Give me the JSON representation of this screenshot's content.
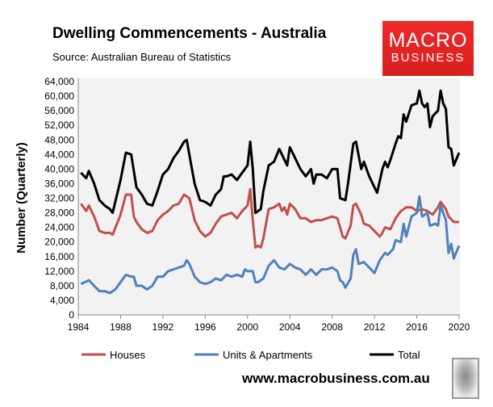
{
  "header": {
    "title": "Dwelling Commencements - Australia",
    "source": "Source: Australian Bureau of Statistics"
  },
  "logo": {
    "line1": "MACRO",
    "line2": "BUSINESS"
  },
  "footer": {
    "url": "www.macrobusiness.com.au"
  },
  "chart_data": {
    "type": "line",
    "title": "Dwelling Commencements - Australia",
    "xlabel": "",
    "ylabel": "Number (Quarterly)",
    "xlim": [
      1984,
      2020
    ],
    "ylim": [
      0,
      64000
    ],
    "xticks": [
      "1984",
      "1988",
      "1992",
      "1996",
      "2000",
      "2004",
      "2008",
      "2012",
      "2016",
      "2020"
    ],
    "yticks": [
      "0",
      "4,000",
      "8,000",
      "12,000",
      "16,000",
      "20,000",
      "24,000",
      "28,000",
      "32,000",
      "36,000",
      "40,000",
      "44,000",
      "48,000",
      "52,000",
      "56,000",
      "60,000",
      "64,000"
    ],
    "legend_position": "bottom",
    "grid": false,
    "series": [
      {
        "name": "Houses",
        "color": "#c0504d",
        "points": [
          [
            1984.25,
            30500
          ],
          [
            1984.75,
            28500
          ],
          [
            1985,
            30000
          ],
          [
            1985.5,
            27000
          ],
          [
            1986,
            23000
          ],
          [
            1986.5,
            22500
          ],
          [
            1987,
            22500
          ],
          [
            1987.25,
            22000
          ],
          [
            1988,
            27500
          ],
          [
            1988.5,
            33000
          ],
          [
            1989,
            33000
          ],
          [
            1989.25,
            27000
          ],
          [
            1989.5,
            25500
          ],
          [
            1990,
            23500
          ],
          [
            1990.5,
            22500
          ],
          [
            1991,
            23000
          ],
          [
            1991.5,
            26000
          ],
          [
            1992,
            27500
          ],
          [
            1992.5,
            28500
          ],
          [
            1993,
            30000
          ],
          [
            1993.5,
            30500
          ],
          [
            1994,
            33000
          ],
          [
            1994.5,
            32000
          ],
          [
            1995,
            26000
          ],
          [
            1995.5,
            23000
          ],
          [
            1996,
            21500
          ],
          [
            1996.5,
            22500
          ],
          [
            1997,
            25000
          ],
          [
            1997.5,
            27000
          ],
          [
            1998,
            27500
          ],
          [
            1998.5,
            28000
          ],
          [
            1999,
            26500
          ],
          [
            1999.5,
            28500
          ],
          [
            2000,
            30000
          ],
          [
            2000.25,
            34500
          ],
          [
            2000.5,
            26000
          ],
          [
            2000.75,
            18500
          ],
          [
            2001,
            19000
          ],
          [
            2001.25,
            18500
          ],
          [
            2001.5,
            21000
          ],
          [
            2002,
            29000
          ],
          [
            2002.5,
            29500
          ],
          [
            2003,
            30500
          ],
          [
            2003.25,
            28500
          ],
          [
            2003.5,
            29500
          ],
          [
            2003.75,
            27500
          ],
          [
            2004,
            30500
          ],
          [
            2004.5,
            29000
          ],
          [
            2005,
            26500
          ],
          [
            2005.5,
            26500
          ],
          [
            2006,
            25500
          ],
          [
            2006.5,
            26000
          ],
          [
            2007,
            26000
          ],
          [
            2007.5,
            26500
          ],
          [
            2008,
            27000
          ],
          [
            2008.5,
            26500
          ],
          [
            2009,
            21500
          ],
          [
            2009.25,
            21000
          ],
          [
            2009.75,
            24500
          ],
          [
            2010,
            30000
          ],
          [
            2010.25,
            30500
          ],
          [
            2010.75,
            27500
          ],
          [
            2011,
            25000
          ],
          [
            2011.5,
            24500
          ],
          [
            2012,
            23000
          ],
          [
            2012.5,
            21500
          ],
          [
            2012.75,
            22500
          ],
          [
            2013,
            24000
          ],
          [
            2013.5,
            23500
          ],
          [
            2014,
            26500
          ],
          [
            2014.5,
            28500
          ],
          [
            2015,
            29500
          ],
          [
            2015.5,
            29500
          ],
          [
            2016,
            28500
          ],
          [
            2016.5,
            29000
          ],
          [
            2017,
            28500
          ],
          [
            2017.5,
            27500
          ],
          [
            2018,
            29500
          ],
          [
            2018.25,
            31000
          ],
          [
            2018.75,
            29000
          ],
          [
            2019,
            27000
          ],
          [
            2019.5,
            25500
          ],
          [
            2020,
            25500
          ]
        ]
      },
      {
        "name": "Units & Apartments",
        "color": "#4f81bd",
        "points": [
          [
            1984.25,
            8500
          ],
          [
            1985,
            9500
          ],
          [
            1985.5,
            8000
          ],
          [
            1986,
            6500
          ],
          [
            1986.5,
            6500
          ],
          [
            1987,
            6000
          ],
          [
            1987.5,
            7000
          ],
          [
            1988,
            9000
          ],
          [
            1988.5,
            11000
          ],
          [
            1989,
            10500
          ],
          [
            1989.25,
            10500
          ],
          [
            1989.5,
            8000
          ],
          [
            1990,
            8000
          ],
          [
            1990.5,
            7000
          ],
          [
            1991,
            8000
          ],
          [
            1991.5,
            10500
          ],
          [
            1992,
            10500
          ],
          [
            1992.5,
            12000
          ],
          [
            1993,
            12500
          ],
          [
            1993.5,
            13000
          ],
          [
            1994,
            13500
          ],
          [
            1994.25,
            15000
          ],
          [
            1994.5,
            14000
          ],
          [
            1995,
            10500
          ],
          [
            1995.5,
            9000
          ],
          [
            1996,
            8500
          ],
          [
            1996.5,
            9000
          ],
          [
            1997,
            10000
          ],
          [
            1997.5,
            9500
          ],
          [
            1998,
            11000
          ],
          [
            1998.5,
            10500
          ],
          [
            1999,
            11000
          ],
          [
            1999.5,
            10500
          ],
          [
            1999.75,
            12500
          ],
          [
            2000,
            12000
          ],
          [
            2000.5,
            12000
          ],
          [
            2000.75,
            9000
          ],
          [
            2001,
            9000
          ],
          [
            2001.5,
            10000
          ],
          [
            2002,
            13500
          ],
          [
            2002.5,
            15000
          ],
          [
            2003,
            13000
          ],
          [
            2003.5,
            12500
          ],
          [
            2004,
            14000
          ],
          [
            2004.5,
            13000
          ],
          [
            2005,
            12500
          ],
          [
            2005.5,
            11000
          ],
          [
            2006,
            12500
          ],
          [
            2006.5,
            11000
          ],
          [
            2007,
            12500
          ],
          [
            2007.5,
            12500
          ],
          [
            2008,
            13000
          ],
          [
            2008.5,
            12000
          ],
          [
            2008.75,
            9500
          ],
          [
            2009,
            9000
          ],
          [
            2009.25,
            7500
          ],
          [
            2009.75,
            10000
          ],
          [
            2010,
            16500
          ],
          [
            2010.25,
            18000
          ],
          [
            2010.5,
            14000
          ],
          [
            2011,
            14500
          ],
          [
            2011.5,
            13000
          ],
          [
            2012,
            11500
          ],
          [
            2012.5,
            15000
          ],
          [
            2013,
            17000
          ],
          [
            2013.25,
            16500
          ],
          [
            2013.75,
            18000
          ],
          [
            2014,
            20500
          ],
          [
            2014.5,
            20000
          ],
          [
            2014.75,
            25000
          ],
          [
            2015,
            21500
          ],
          [
            2015.5,
            27000
          ],
          [
            2016,
            28000
          ],
          [
            2016.25,
            32500
          ],
          [
            2016.5,
            27000
          ],
          [
            2017,
            28000
          ],
          [
            2017.25,
            24500
          ],
          [
            2017.75,
            25000
          ],
          [
            2018,
            24500
          ],
          [
            2018.25,
            30000
          ],
          [
            2018.5,
            28000
          ],
          [
            2018.75,
            26000
          ],
          [
            2019,
            17000
          ],
          [
            2019.25,
            19500
          ],
          [
            2019.5,
            15500
          ],
          [
            2020,
            19000
          ]
        ]
      },
      {
        "name": "Total",
        "color": "#000000",
        "points": [
          [
            1984.25,
            39000
          ],
          [
            1984.75,
            37500
          ],
          [
            1985,
            39500
          ],
          [
            1985.5,
            36000
          ],
          [
            1986,
            31500
          ],
          [
            1986.5,
            30000
          ],
          [
            1987,
            29000
          ],
          [
            1987.25,
            28000
          ],
          [
            1988,
            37000
          ],
          [
            1988.5,
            44500
          ],
          [
            1989,
            44000
          ],
          [
            1989.5,
            35000
          ],
          [
            1990,
            33000
          ],
          [
            1990.5,
            30500
          ],
          [
            1991,
            30000
          ],
          [
            1991.5,
            34000
          ],
          [
            1992,
            38500
          ],
          [
            1992.5,
            40000
          ],
          [
            1993,
            43000
          ],
          [
            1993.5,
            45000
          ],
          [
            1994,
            47500
          ],
          [
            1994.25,
            48000
          ],
          [
            1994.75,
            40000
          ],
          [
            1995,
            36000
          ],
          [
            1995.5,
            31500
          ],
          [
            1996,
            31000
          ],
          [
            1996.5,
            30000
          ],
          [
            1997,
            33000
          ],
          [
            1997.5,
            34500
          ],
          [
            1997.75,
            38000
          ],
          [
            1998,
            38000
          ],
          [
            1998.5,
            38500
          ],
          [
            1999,
            37000
          ],
          [
            1999.5,
            39000
          ],
          [
            2000,
            41000
          ],
          [
            2000.25,
            47500
          ],
          [
            2000.5,
            40000
          ],
          [
            2000.75,
            28000
          ],
          [
            2001,
            28500
          ],
          [
            2001.25,
            29000
          ],
          [
            2001.5,
            34000
          ],
          [
            2002,
            41000
          ],
          [
            2002.5,
            42000
          ],
          [
            2003,
            45500
          ],
          [
            2003.25,
            44000
          ],
          [
            2003.75,
            41000
          ],
          [
            2004,
            46000
          ],
          [
            2004.5,
            43000
          ],
          [
            2005,
            40000
          ],
          [
            2005.5,
            38000
          ],
          [
            2006,
            40000
          ],
          [
            2006.25,
            36000
          ],
          [
            2006.5,
            38500
          ],
          [
            2007,
            38500
          ],
          [
            2007.5,
            37500
          ],
          [
            2008,
            40000
          ],
          [
            2008.5,
            40000
          ],
          [
            2008.75,
            32000
          ],
          [
            2009.25,
            31500
          ],
          [
            2009.5,
            36000
          ],
          [
            2010,
            47000
          ],
          [
            2010.25,
            47500
          ],
          [
            2010.75,
            40000
          ],
          [
            2011,
            42000
          ],
          [
            2011.5,
            38000
          ],
          [
            2012,
            35000
          ],
          [
            2012.25,
            33500
          ],
          [
            2012.75,
            40000
          ],
          [
            2013,
            42000
          ],
          [
            2013.25,
            40500
          ],
          [
            2013.5,
            42500
          ],
          [
            2014,
            47000
          ],
          [
            2014.25,
            49000
          ],
          [
            2014.5,
            48500
          ],
          [
            2014.75,
            55000
          ],
          [
            2015,
            53000
          ],
          [
            2015.5,
            57500
          ],
          [
            2016,
            58000
          ],
          [
            2016.25,
            61500
          ],
          [
            2016.5,
            58000
          ],
          [
            2016.75,
            57000
          ],
          [
            2017,
            58000
          ],
          [
            2017.25,
            51500
          ],
          [
            2017.5,
            54500
          ],
          [
            2018,
            56000
          ],
          [
            2018.25,
            61500
          ],
          [
            2018.5,
            58000
          ],
          [
            2018.75,
            56500
          ],
          [
            2019,
            46000
          ],
          [
            2019.25,
            45500
          ],
          [
            2019.5,
            41000
          ],
          [
            2020,
            44500
          ]
        ]
      }
    ]
  }
}
